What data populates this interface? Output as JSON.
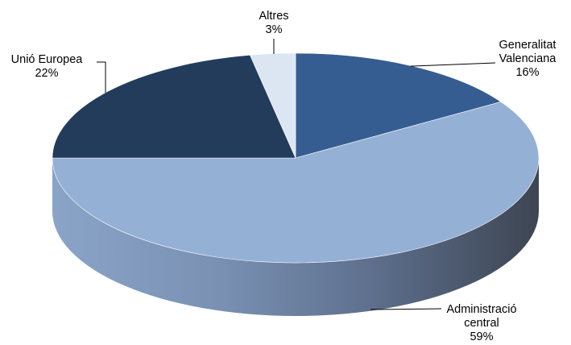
{
  "chart_data": {
    "type": "pie",
    "title": "",
    "slices": [
      {
        "label_lines": [
          "Generalitat",
          "Valenciana"
        ],
        "value": 16,
        "value_label": "16%",
        "color": "#355D92"
      },
      {
        "label_lines": [
          "Administració",
          "central"
        ],
        "value": 59,
        "value_label": "59%",
        "color": "#95B0D5"
      },
      {
        "label_lines": [
          "Unió Europea"
        ],
        "value": 22,
        "value_label": "22%",
        "color": "#233C5B"
      },
      {
        "label_lines": [
          "Altres"
        ],
        "value": 3,
        "value_label": "3%",
        "color": "#DCE6F2"
      }
    ],
    "style": "3d-pie",
    "start": "top, clockwise",
    "legend": "none"
  }
}
